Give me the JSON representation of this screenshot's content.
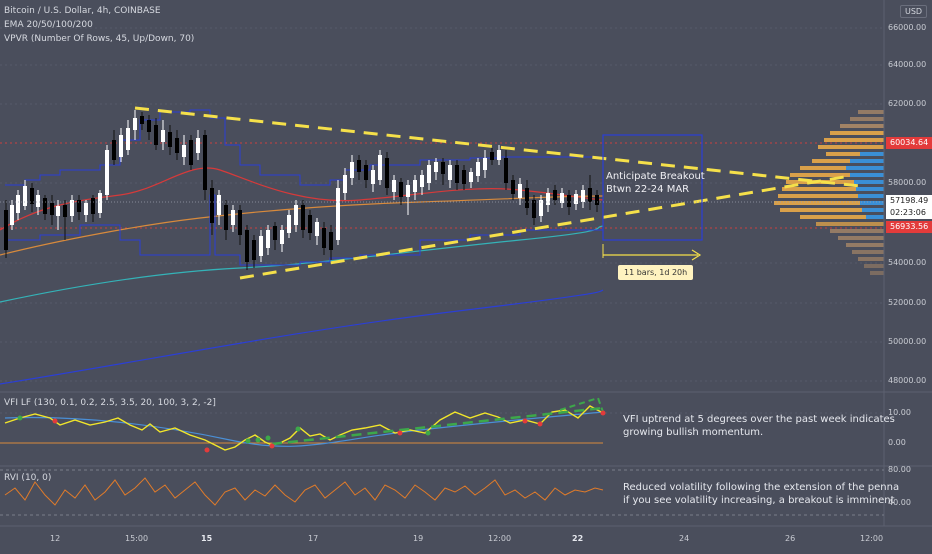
{
  "symbol_title": "Bitcoin / U.S. Dollar, 4h, COINBASE",
  "indicator_ema": "EMA 20/50/100/200",
  "indicator_vpvr": "VPVR (Number Of Rows, 45, Up/Down, 70)",
  "currency": "USD",
  "price_axis": [
    "66000.00",
    "64000.00",
    "62000.00",
    "58000.00",
    "54000.00",
    "52000.00",
    "50000.00",
    "48000.00"
  ],
  "price_badges": {
    "high": "60034.64",
    "current": "57198.49",
    "countdown": "02:23:06",
    "low": "56933.56"
  },
  "date_axis": [
    "12",
    "15:00",
    "15",
    "17",
    "19",
    "12:00",
    "22",
    "24",
    "26",
    "12:00"
  ],
  "annotation": {
    "line1": "Anticipate Breakout",
    "line2": "Btwn 22-24 MAR",
    "measure": "11 bars, 1d 20h"
  },
  "vfi": {
    "label": "VFI LF (130, 0.1, 0.2, 2.5, 3.5, 20, 100, 3, 2, -2]",
    "axis": [
      "10.00",
      "0.00"
    ],
    "note_line1": "VFI uptrend at 5 degrees over the past week indicates",
    "note_line2": "growing bullish momentum."
  },
  "rvi": {
    "label": "RVI (10, 0)",
    "axis": [
      "80.00",
      "40.00"
    ],
    "note_line1": "Reduced volatility following the extension of the penna",
    "note_line2": "if you see volatility increasing, a breakout is imminent"
  },
  "colors": {
    "background": "#4a4e5c",
    "bull_candle": "#ffffff",
    "bear_candle": "#000000",
    "trendline": "#f5e04a",
    "channel": "#2b3fd6",
    "ema20": "#d63a3a",
    "ema50": "#d88a3c",
    "ema100": "#34b3b8",
    "ema200": "#2b3fd6",
    "vfi_line": "#f2e62a",
    "vfi_signal": "#3da84a",
    "rvi_line": "#e07b2a",
    "high_badge": "#e33b3b",
    "low_badge": "#e33b3b"
  }
}
